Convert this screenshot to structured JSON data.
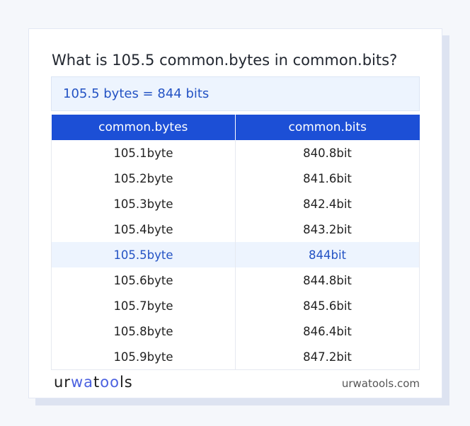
{
  "title": "What is 105.5 common.bytes in common.bits?",
  "result": "105.5 bytes = 844 bits",
  "table": {
    "headers": [
      "common.bytes",
      "common.bits"
    ],
    "highlight_index": 4,
    "rows": [
      [
        "105.1byte",
        "840.8bit"
      ],
      [
        "105.2byte",
        "841.6bit"
      ],
      [
        "105.3byte",
        "842.4bit"
      ],
      [
        "105.4byte",
        "843.2bit"
      ],
      [
        "105.5byte",
        "844bit"
      ],
      [
        "105.6byte",
        "844.8bit"
      ],
      [
        "105.7byte",
        "845.6bit"
      ],
      [
        "105.8byte",
        "846.4bit"
      ],
      [
        "105.9byte",
        "847.2bit"
      ]
    ]
  },
  "footer": {
    "logo": "urwatools",
    "site": "urwatools.com"
  },
  "colors": {
    "accent": "#1c4fd6",
    "highlight_bg": "#edf4fe",
    "highlight_text": "#2453c4"
  }
}
